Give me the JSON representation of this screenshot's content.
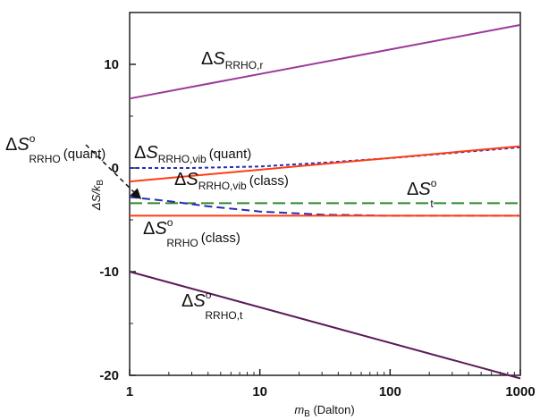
{
  "chart_data": {
    "type": "line",
    "xlabel": {
      "main": "m",
      "sub": "B",
      "rest": " (Dalton)"
    },
    "ylabel": {
      "main": "ΔS/k",
      "sub": "B"
    },
    "xscale": "log",
    "xlim": [
      1,
      1000
    ],
    "ylim": [
      -20,
      15
    ],
    "xticks": [
      {
        "value": 1,
        "label": "1"
      },
      {
        "value": 10,
        "label": "10"
      },
      {
        "value": 100,
        "label": "100"
      },
      {
        "value": 1000,
        "label": "1000"
      }
    ],
    "yticks": [
      {
        "value": 10,
        "label": "10"
      },
      {
        "value": 0,
        "label": "0"
      },
      {
        "value": -10,
        "label": "-10"
      },
      {
        "value": -20,
        "label": "-20"
      }
    ],
    "grid": false,
    "series": [
      {
        "key": "rrho_r",
        "color": "#9a3a9a",
        "dash": "",
        "x": [
          1,
          1000
        ],
        "y": [
          6.7,
          13.8
        ]
      },
      {
        "key": "rrho_vib_quant",
        "color": "#2b2bb5",
        "dash": "4,3",
        "x": [
          1,
          3,
          10,
          30,
          100,
          1000
        ],
        "y": [
          0.0,
          0.0,
          0.15,
          0.5,
          0.95,
          2.0
        ]
      },
      {
        "key": "rrho_vib_class",
        "color": "#ff3c14",
        "dash": "",
        "x": [
          1,
          1000
        ],
        "y": [
          -1.3,
          2.1
        ]
      },
      {
        "key": "s_t",
        "color": "#2e8b2e",
        "dash": "14,6",
        "x": [
          1,
          1000
        ],
        "y": [
          -3.4,
          -3.4
        ]
      },
      {
        "key": "rrho_quant",
        "color": "#2b2bb5",
        "dash": "9,5",
        "x": [
          1,
          2,
          4,
          10,
          30,
          100,
          1000
        ],
        "y": [
          -2.8,
          -3.2,
          -3.7,
          -4.2,
          -4.5,
          -4.6,
          -4.6
        ]
      },
      {
        "key": "rrho_class",
        "color": "#ff3c14",
        "dash": "",
        "x": [
          1,
          1000
        ],
        "y": [
          -4.6,
          -4.6
        ]
      },
      {
        "key": "rrho_t",
        "color": "#5b1a5b",
        "dash": "",
        "x": [
          1,
          1000
        ],
        "y": [
          -10.0,
          -20.3
        ]
      }
    ],
    "annotations": [
      {
        "key": "rrho_r",
        "delta": "Δ",
        "main": "S",
        "sup": "",
        "sub": "RRHO,r",
        "tail": ""
      },
      {
        "key": "rrho_vib_quant",
        "delta": "Δ",
        "main": "S",
        "sup": "",
        "sub": "RRHO,vib",
        "tail": "(quant)"
      },
      {
        "key": "rrho_vib_class",
        "delta": "Δ",
        "main": "S",
        "sup": "",
        "sub": "RRHO,vib",
        "tail": "(class)"
      },
      {
        "key": "s_t",
        "delta": "Δ",
        "main": "S",
        "sup": "o",
        "sub": "t",
        "tail": ""
      },
      {
        "key": "rrho_quant",
        "delta": "Δ",
        "main": "S",
        "sup": "o",
        "sub": "RRHO",
        "tail": "(quant)"
      },
      {
        "key": "rrho_class",
        "delta": "Δ",
        "main": "S",
        "sup": "o",
        "sub": "RRHO",
        "tail": "(class)"
      },
      {
        "key": "rrho_t",
        "delta": "Δ",
        "main": "S",
        "sup": "o",
        "sub": "RRHO,t",
        "tail": ""
      }
    ]
  }
}
